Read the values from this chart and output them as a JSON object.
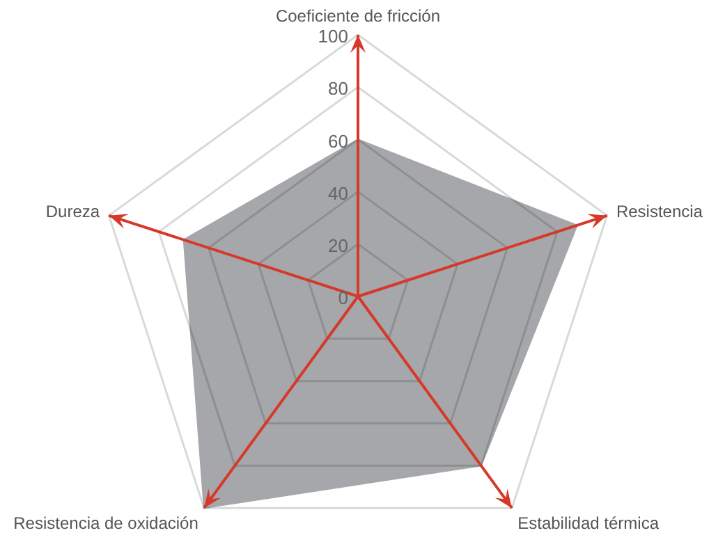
{
  "chart_data": {
    "type": "radar",
    "categories": [
      "Coeficiente de fricción",
      "Resistencia",
      "Estabilidad térmica",
      "Resistencia de oxidación",
      "Dureza"
    ],
    "series": [
      {
        "color": "#a6a7aa",
        "values": [
          60,
          88,
          80,
          100,
          70
        ]
      }
    ],
    "ylim": [
      0,
      100
    ],
    "yticks": [
      0,
      20,
      40,
      60,
      80,
      100
    ],
    "grid": true,
    "legend": false,
    "marker": "none"
  }
}
